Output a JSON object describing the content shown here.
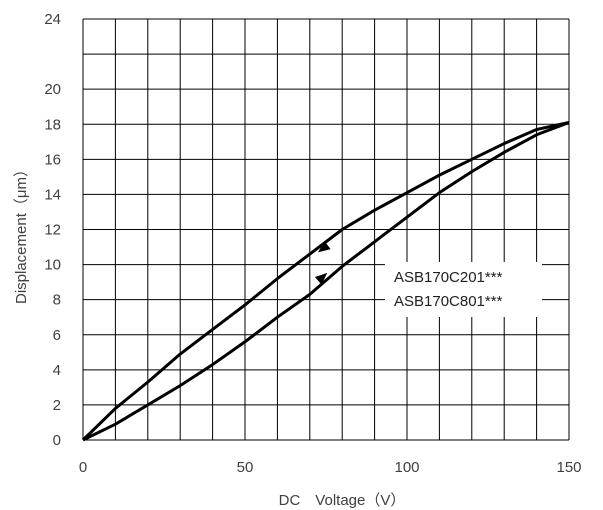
{
  "chart_data": {
    "type": "line",
    "title": "",
    "xlabel": "DC　Voltage（V）",
    "ylabel": "Displacement（μm）",
    "xlim": [
      0,
      150
    ],
    "ylim": [
      0,
      24
    ],
    "x_ticks": [
      "0",
      "50",
      "100",
      "150"
    ],
    "y_ticks": [
      "0",
      "2",
      "4",
      "6",
      "8",
      "10",
      "12",
      "14",
      "16",
      "18",
      "20",
      "24"
    ],
    "grid": true,
    "legend": {
      "position": "right-middle",
      "entries": [
        "ASB170C201***",
        "ASB170C801***"
      ]
    },
    "series": [
      {
        "direction": "increasing",
        "x": [
          0,
          10,
          20,
          30,
          40,
          50,
          60,
          70,
          80,
          90,
          100,
          110,
          120,
          130,
          140,
          150
        ],
        "y": [
          0,
          0.9,
          2.0,
          3.1,
          4.3,
          5.6,
          7.0,
          8.3,
          9.9,
          11.3,
          12.7,
          14.1,
          15.3,
          16.4,
          17.4,
          18.1
        ]
      },
      {
        "direction": "decreasing",
        "x": [
          150,
          140,
          130,
          120,
          110,
          100,
          90,
          80,
          70,
          60,
          50,
          40,
          30,
          20,
          10,
          0
        ],
        "y": [
          18.1,
          17.7,
          16.9,
          16.0,
          15.1,
          14.1,
          13.1,
          12.0,
          10.6,
          9.2,
          7.7,
          6.3,
          4.9,
          3.3,
          1.8,
          0
        ]
      }
    ],
    "arrows": [
      {
        "series": 0,
        "x": 74,
        "y": 9.3
      },
      {
        "series": 1,
        "x": 74,
        "y": 10.9
      }
    ],
    "colors": {
      "line": "#000000",
      "grid": "#000000",
      "text": "#404040"
    }
  }
}
